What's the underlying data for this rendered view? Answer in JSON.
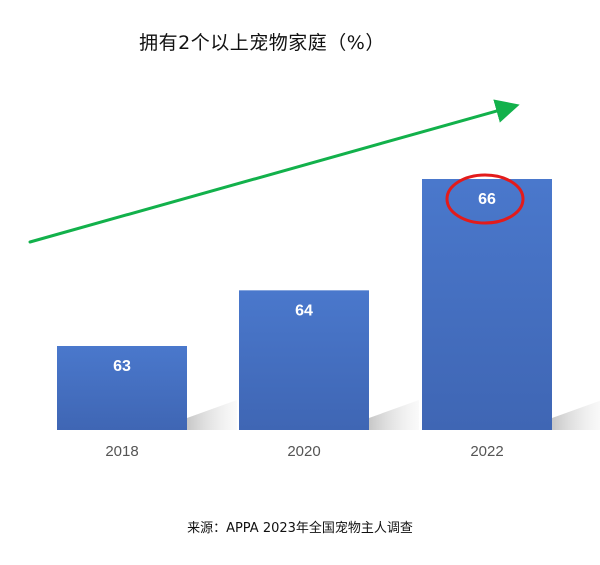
{
  "chart_data": {
    "type": "bar",
    "title": "拥有2个以上宠物家庭（%）",
    "categories": [
      "2018",
      "2020",
      "2022"
    ],
    "values": [
      63,
      64,
      66
    ],
    "value_labels": [
      "63",
      "64",
      "66"
    ],
    "xlabel": "",
    "ylabel": "",
    "grid": false,
    "legend": "none",
    "bar_color": "#4472C4",
    "trend_arrow_color": "#12B14B",
    "highlight": {
      "category": "2022",
      "shape": "ellipse",
      "color": "#E31B1B"
    }
  },
  "footer": {
    "source": "来源：APPA 2023年全国宠物主人调查"
  }
}
